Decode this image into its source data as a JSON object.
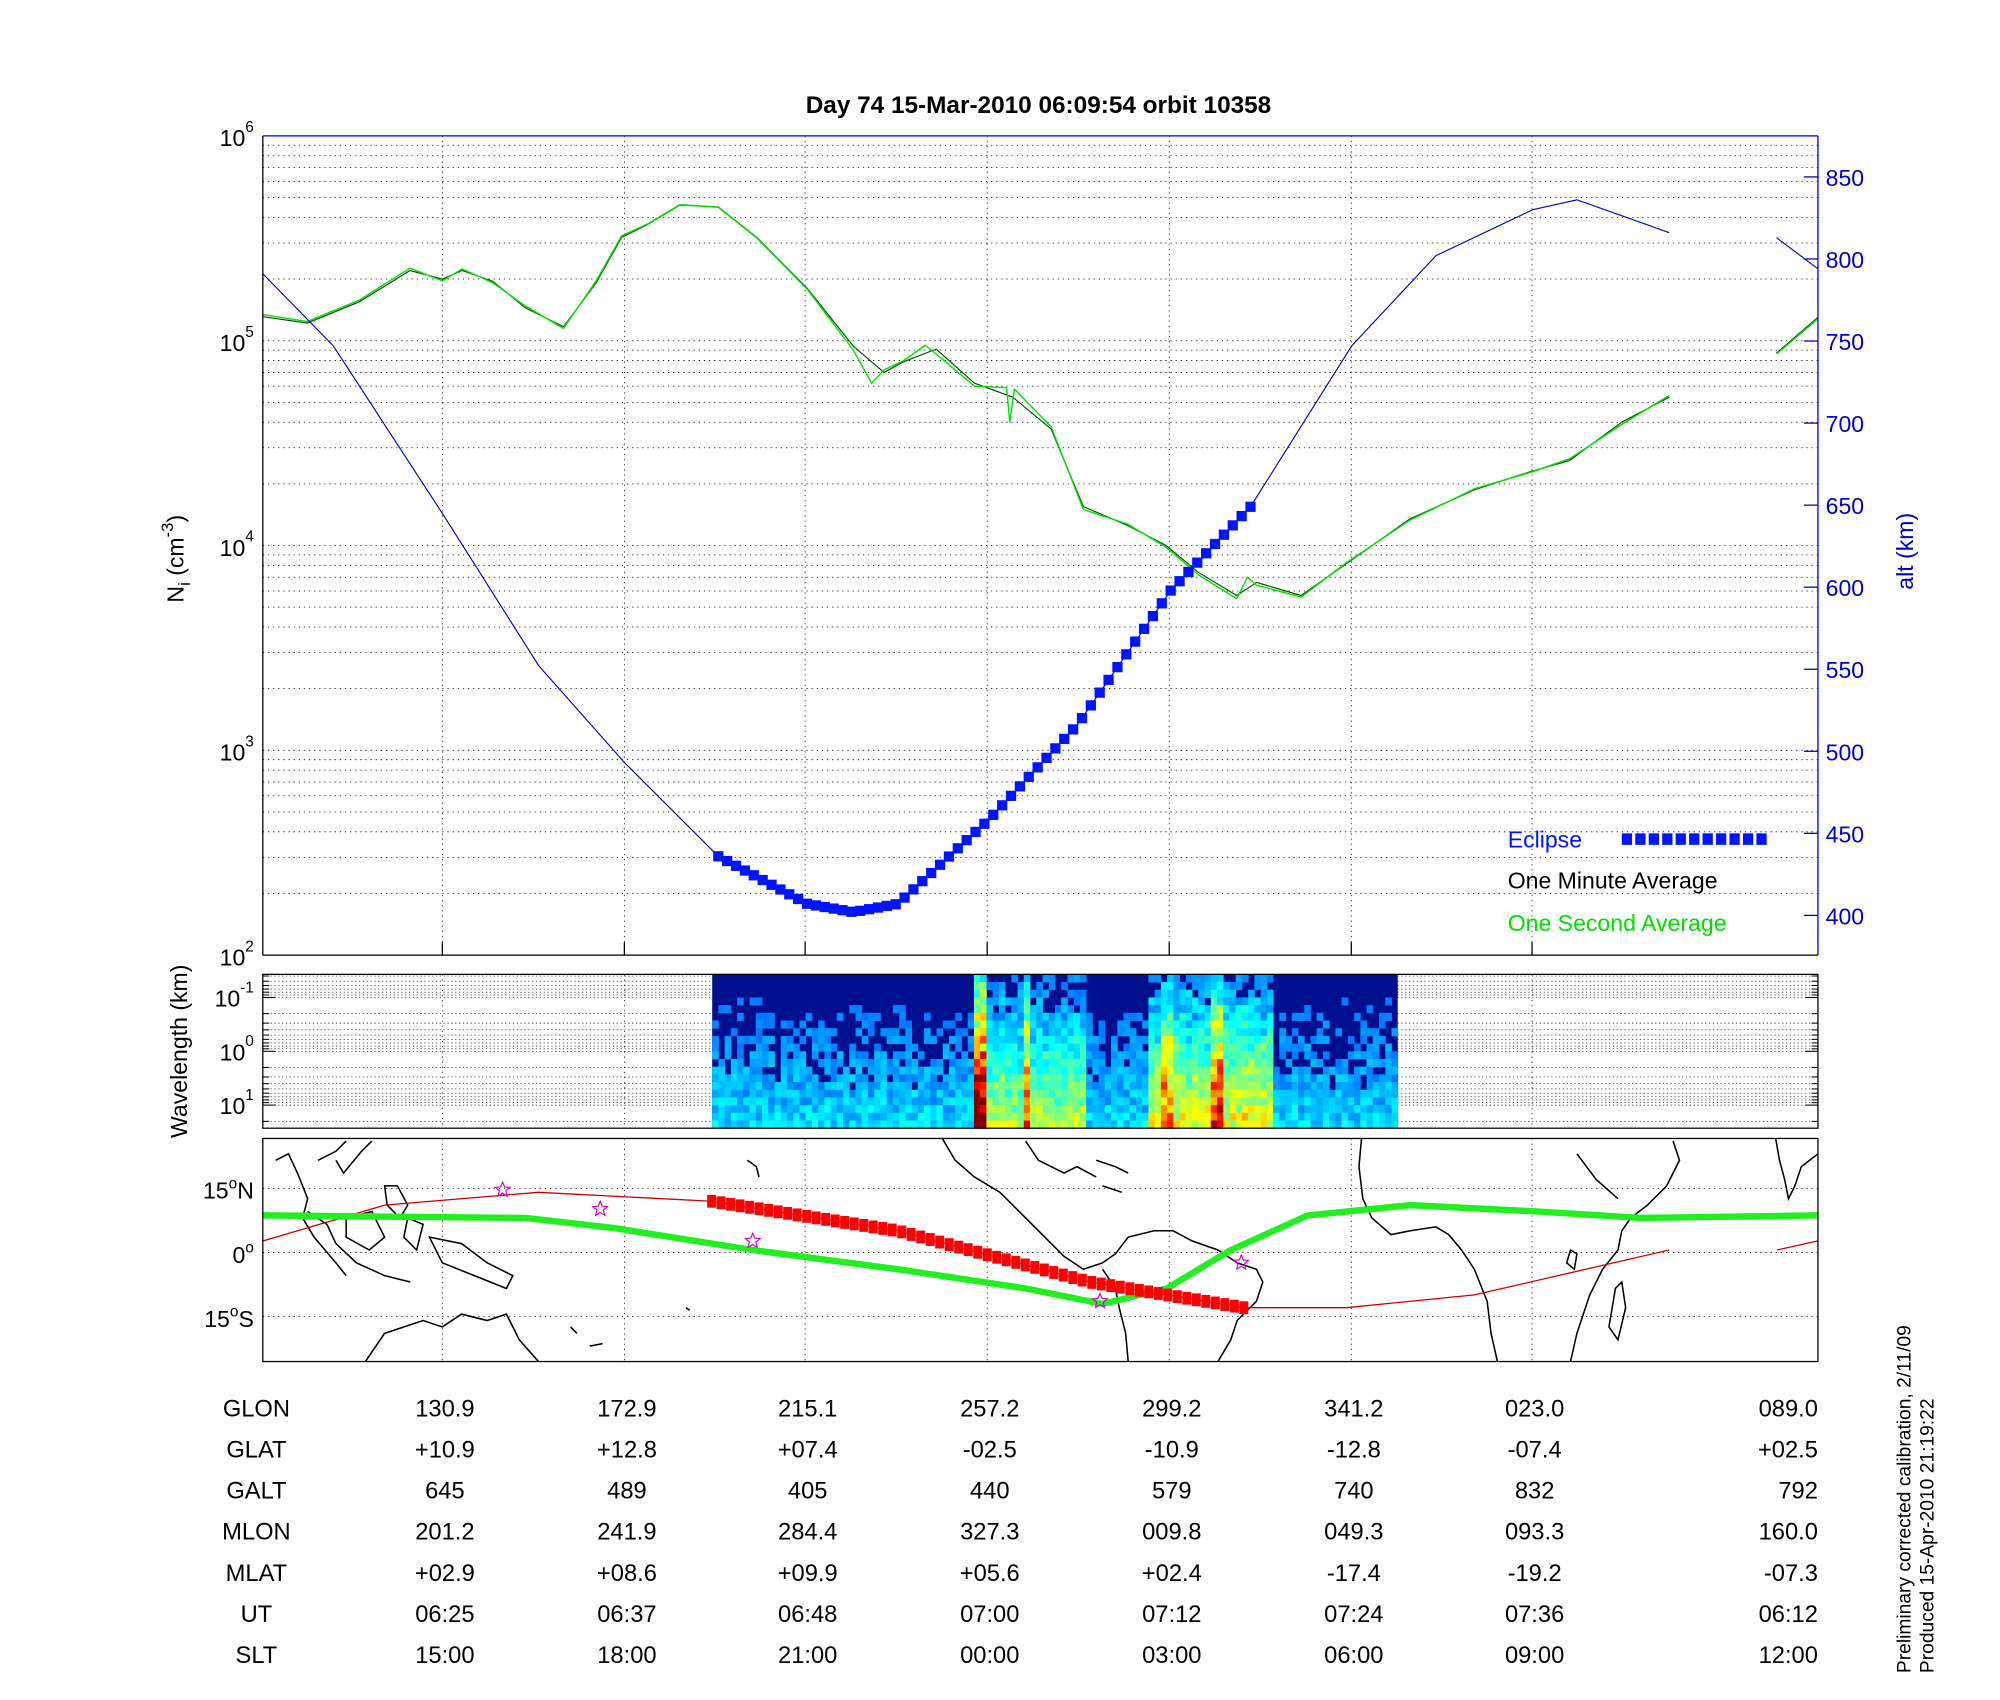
{
  "title": "Day 74  15-Mar-2010 06:09:54   orbit 10358",
  "footnotes": {
    "line1": "Preliminary corrected calibration, 2/11/09",
    "line2": "Produced 15-Apr-2010 21:19:22"
  },
  "colors": {
    "altitude": "#0000cc",
    "eclipse": "#0014ff",
    "one_minute": "#000000",
    "one_second": "#00e000",
    "orbit_track": "#cc0000",
    "eclipse_track": "#ff0000",
    "magnetic_track": "#22ee22",
    "stars": "#cc00cc"
  },
  "chart_data": [
    {
      "type": "line",
      "name": "density-altitude",
      "xunit": "minutes after 06:00 UT",
      "xlim": [
        13.3,
        114.7
      ],
      "ylabel": "N",
      "ylabel_sub": "i",
      "ylabel_unit_pre": " (cm",
      "ylabel_unit_exp": "-3",
      "ylabel_unit_post": ")",
      "yscale": "log",
      "ylim": [
        100,
        1000000
      ],
      "yticks": [
        {
          "base": "10",
          "exp": "6",
          "value": 1000000
        },
        {
          "base": "10",
          "exp": "5",
          "value": 100000
        },
        {
          "base": "10",
          "exp": "4",
          "value": 10000
        },
        {
          "base": "10",
          "exp": "3",
          "value": 1000
        },
        {
          "base": "10",
          "exp": "2",
          "value": 100
        }
      ],
      "y2label": "alt (km)",
      "y2lim": [
        377,
        875
      ],
      "y2ticks": [
        "850",
        "800",
        "750",
        "700",
        "650",
        "600",
        "550",
        "500",
        "450",
        "400"
      ],
      "grid": true,
      "legend": {
        "placement": "bottom-right",
        "entries": [
          "Eclipse",
          "One Minute Average",
          "One Second Average"
        ]
      },
      "series": [
        {
          "name": "One Minute Average",
          "axis": "left",
          "segments": [
            [
              [
                13.3,
                131000
              ],
              [
                16.2,
                122000
              ],
              [
                19.6,
                155000
              ],
              [
                22.9,
                220000
              ],
              [
                25.0,
                200000
              ],
              [
                26.3,
                220000
              ],
              [
                28.3,
                195000
              ],
              [
                30.4,
                145000
              ],
              [
                32.9,
                117000
              ],
              [
                35.0,
                190000
              ],
              [
                36.7,
                320000
              ],
              [
                38.4,
                370000
              ],
              [
                40.5,
                460000
              ],
              [
                43.0,
                450000
              ],
              [
                45.5,
                320000
              ],
              [
                48.8,
                180000
              ],
              [
                51.8,
                94000
              ],
              [
                53.8,
                70000
              ],
              [
                55.1,
                79000
              ],
              [
                57.2,
                91000
              ],
              [
                59.7,
                62000
              ],
              [
                62.2,
                53000
              ],
              [
                64.7,
                37000
              ],
              [
                66.8,
                15500
              ],
              [
                69.7,
                12500
              ],
              [
                72.2,
                10000
              ],
              [
                74.3,
                7400
              ],
              [
                76.8,
                5700
              ],
              [
                78.1,
                6600
              ],
              [
                81.0,
                5700
              ],
              [
                83.9,
                8100
              ],
              [
                88.1,
                13500
              ],
              [
                92.3,
                18700
              ],
              [
                96.0,
                23000
              ],
              [
                98.5,
                26000
              ],
              [
                101.9,
                40000
              ],
              [
                105.0,
                53000
              ]
            ],
            [
              [
                112.0,
                87000
              ],
              [
                114.7,
                130000
              ]
            ]
          ]
        },
        {
          "name": "One Second Average",
          "axis": "left",
          "segments": [
            [
              [
                13.3,
                134000
              ],
              [
                16.2,
                124000
              ],
              [
                19.6,
                158000
              ],
              [
                22.9,
                226000
              ],
              [
                25.0,
                196000
              ],
              [
                26.3,
                224000
              ],
              [
                28.3,
                192000
              ],
              [
                30.4,
                148000
              ],
              [
                32.9,
                115000
              ],
              [
                35.0,
                194000
              ],
              [
                36.7,
                325000
              ],
              [
                38.4,
                372000
              ],
              [
                40.5,
                462000
              ],
              [
                43.0,
                448000
              ],
              [
                45.5,
                318000
              ],
              [
                48.8,
                178000
              ],
              [
                51.8,
                90000
              ],
              [
                53.0,
                62000
              ],
              [
                53.8,
                72000
              ],
              [
                55.1,
                80000
              ],
              [
                56.5,
                95000
              ],
              [
                57.2,
                86000
              ],
              [
                59.7,
                60000
              ],
              [
                61.8,
                59000
              ],
              [
                62.0,
                40000
              ],
              [
                62.3,
                58000
              ],
              [
                64.7,
                38000
              ],
              [
                66.8,
                15000
              ],
              [
                69.7,
                12700
              ],
              [
                72.2,
                9800
              ],
              [
                74.3,
                7200
              ],
              [
                76.8,
                5500
              ],
              [
                77.5,
                7000
              ],
              [
                78.1,
                6400
              ],
              [
                81.0,
                5600
              ],
              [
                83.9,
                8200
              ],
              [
                88.1,
                13300
              ],
              [
                92.3,
                18900
              ],
              [
                96.0,
                22800
              ],
              [
                98.5,
                26500
              ],
              [
                101.9,
                39000
              ],
              [
                105.0,
                54000
              ]
            ],
            [
              [
                112.0,
                86000
              ],
              [
                114.7,
                128000
              ]
            ]
          ]
        },
        {
          "name": "Altitude",
          "axis": "right",
          "segments": [
            [
              [
                13.3,
                791
              ],
              [
                17.9,
                747
              ],
              [
                25.0,
                645
              ],
              [
                31.3,
                552
              ],
              [
                36.9,
                493
              ],
              [
                43.0,
                436
              ],
              [
                48.8,
                407
              ],
              [
                51.8,
                402
              ],
              [
                54.7,
                407
              ],
              [
                60.6,
                458
              ],
              [
                66.4,
                516
              ],
              [
                72.5,
                598
              ],
              [
                77.7,
                649
              ],
              [
                84.3,
                747
              ],
              [
                89.8,
                802
              ],
              [
                96.1,
                830
              ],
              [
                99.0,
                836
              ],
              [
                105.0,
                816
              ]
            ],
            [
              [
                112.0,
                813
              ],
              [
                114.7,
                794
              ]
            ]
          ]
        }
      ],
      "eclipse_interval": [
        43.0,
        77.7
      ]
    },
    {
      "type": "heatmap",
      "name": "wavelength-spectrogram",
      "ylabel": "Wavelength (km)",
      "yscale": "log",
      "yticks": [
        {
          "base": "10",
          "exp": "-1"
        },
        {
          "base": "10",
          "exp": "0"
        },
        {
          "base": "10",
          "exp": "1"
        }
      ],
      "data_interval": [
        42.6,
        87.3
      ],
      "colormap": "jet",
      "bright_features": [
        {
          "t": 60.2,
          "level": 0.95
        },
        {
          "t": 63.1,
          "level": 0.7
        },
        {
          "t": 72.2,
          "level": 0.6
        },
        {
          "t": 75.5,
          "level": 0.75
        }
      ]
    },
    {
      "type": "scatter",
      "name": "ground-track-map",
      "xlim": [
        89.5,
        449.5
      ],
      "ylim": [
        -25.5,
        26.7
      ],
      "yticks": [
        {
          "label": "15",
          "deg": "o",
          "hemi": "N"
        },
        {
          "label": "0",
          "deg": "o",
          "hemi": ""
        },
        {
          "label": "15",
          "deg": "o",
          "hemi": "S"
        }
      ],
      "orbit_track": [
        [
          [
            89.5,
            2.7
          ],
          [
            117.7,
            11.1
          ],
          [
            153.3,
            14.1
          ],
          [
            193.4,
            12.0
          ],
          [
            236.4,
            5.1
          ],
          [
            280.9,
            -6.9
          ],
          [
            316.6,
            -12.9
          ],
          [
            340.3,
            -12.9
          ],
          [
            10.0,
            -9.9
          ],
          [
            55.1,
            0.6
          ]
        ],
        [
          [
            80.0,
            0.6
          ],
          [
            89.4,
            2.7
          ]
        ]
      ],
      "eclipse_lon_range": [
        193.4,
        316.6
      ],
      "magnetic_track": [
        [
          89.5,
          8.7
        ],
        [
          150.3,
          8.1
        ],
        [
          171.1,
          5.7
        ],
        [
          202.9,
          0.6
        ],
        [
          236.4,
          -3.9
        ],
        [
          266.1,
          -8.4
        ],
        [
          283.9,
          -12.0
        ],
        [
          298.7,
          -8.4
        ],
        [
          313.6,
          0.6
        ],
        [
          331.4,
          8.7
        ],
        [
          355.1,
          11.1
        ],
        [
          24.8,
          9.6
        ],
        [
          48.6,
          8.1
        ],
        [
          89.4,
          8.7
        ]
      ],
      "stars": [
        [
          145.0,
          14.7
        ],
        [
          167.6,
          10.2
        ],
        [
          202.9,
          2.7
        ],
        [
          283.3,
          -11.4
        ],
        [
          316.0,
          -2.4
        ]
      ]
    }
  ],
  "table": {
    "rows": [
      {
        "label": "GLON",
        "values": [
          "130.9",
          "172.9",
          "215.1",
          "257.2",
          "299.2",
          "341.2",
          "023.0",
          "089.0"
        ]
      },
      {
        "label": "GLAT",
        "values": [
          "+10.9",
          "+12.8",
          "+07.4",
          "-02.5",
          "-10.9",
          "-12.8",
          "-07.4",
          "+02.5"
        ]
      },
      {
        "label": "GALT",
        "values": [
          "645",
          "489",
          "405",
          "440",
          "579",
          "740",
          "832",
          "792"
        ]
      },
      {
        "label": "MLON",
        "values": [
          "201.2",
          "241.9",
          "284.4",
          "327.3",
          "009.8",
          "049.3",
          "093.3",
          "160.0"
        ]
      },
      {
        "label": "MLAT",
        "values": [
          "+02.9",
          "+08.6",
          "+09.9",
          "+05.6",
          "+02.4",
          "-17.4",
          "-19.2",
          "-07.3"
        ]
      },
      {
        "label": "UT",
        "values": [
          "06:25",
          "06:37",
          "06:48",
          "07:00",
          "07:12",
          "07:24",
          "07:36",
          "06:12"
        ]
      },
      {
        "label": "SLT",
        "values": [
          "15:00",
          "18:00",
          "21:00",
          "00:00",
          "03:00",
          "06:00",
          "09:00",
          "12:00"
        ]
      }
    ]
  }
}
